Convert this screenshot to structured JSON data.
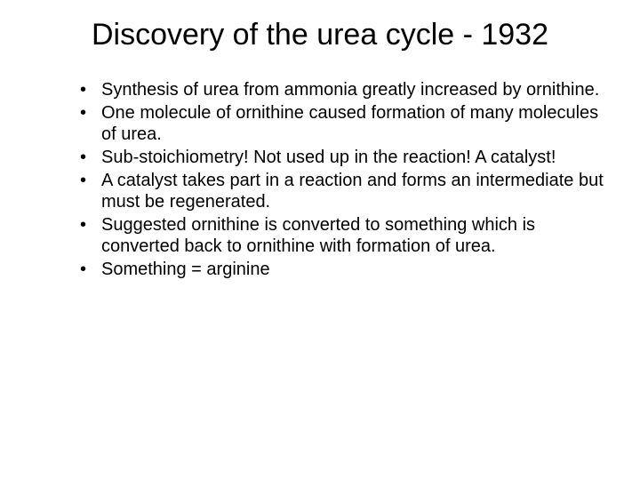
{
  "slide": {
    "title": "Discovery of the urea cycle - 1932",
    "bullets": [
      "Synthesis of urea from ammonia greatly increased by ornithine.",
      "One molecule of ornithine caused formation of many molecules of urea.",
      "Sub-stoichiometry! Not used up in the reaction! A catalyst!",
      "A catalyst takes part in a reaction and forms an intermediate but must be regenerated.",
      "Suggested ornithine is converted to something which is converted back to ornithine with formation of urea.",
      "Something = arginine"
    ],
    "styling": {
      "background_color": "#ffffff",
      "text_color": "#000000",
      "title_fontsize": 34,
      "body_fontsize": 20,
      "font_family": "Arial",
      "title_weight": "normal",
      "body_weight": "normal"
    }
  }
}
